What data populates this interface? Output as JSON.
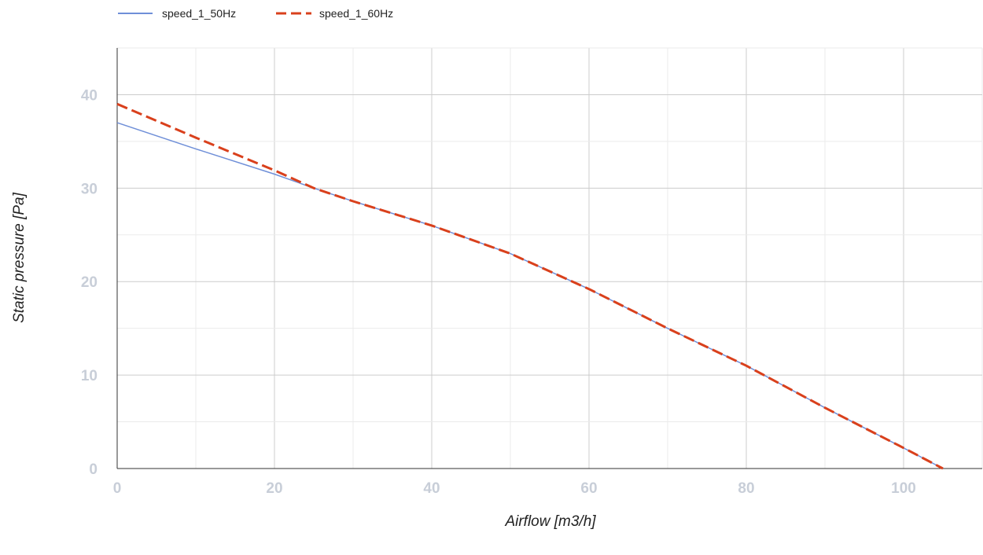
{
  "chart_data": {
    "type": "line",
    "xlabel": "Airflow [m3/h]",
    "ylabel": "Static pressure [Pa]",
    "xlim": [
      0,
      110
    ],
    "ylim": [
      0,
      45
    ],
    "x_ticks": [
      0,
      20,
      40,
      60,
      80,
      100
    ],
    "y_ticks": [
      0,
      10,
      20,
      30,
      40
    ],
    "x_tick_labels": [
      "0",
      "20",
      "40",
      "60",
      "80",
      "100"
    ],
    "y_tick_labels": [
      "0",
      "10",
      "20",
      "30",
      "40"
    ],
    "grid": true,
    "legend_position": "top-left",
    "series": [
      {
        "name": "speed_1_50Hz",
        "color": "#6f8fd8",
        "style": "solid",
        "points": [
          [
            0,
            37
          ],
          [
            10,
            34.2
          ],
          [
            20,
            31.5
          ],
          [
            25,
            30
          ],
          [
            30,
            28.6
          ],
          [
            40,
            26
          ],
          [
            50,
            23
          ],
          [
            60,
            19.2
          ],
          [
            70,
            15
          ],
          [
            80,
            11
          ],
          [
            90,
            6.5
          ],
          [
            100,
            2.2
          ],
          [
            105,
            0
          ]
        ]
      },
      {
        "name": "speed_1_60Hz",
        "color": "#d9401c",
        "style": "dashed",
        "points": [
          [
            0,
            39
          ],
          [
            10,
            35.4
          ],
          [
            20,
            31.9
          ],
          [
            25,
            30
          ],
          [
            30,
            28.6
          ],
          [
            40,
            26
          ],
          [
            50,
            23
          ],
          [
            60,
            19.2
          ],
          [
            70,
            15
          ],
          [
            80,
            11
          ],
          [
            90,
            6.5
          ],
          [
            100,
            2.2
          ],
          [
            105,
            0
          ]
        ]
      }
    ]
  }
}
